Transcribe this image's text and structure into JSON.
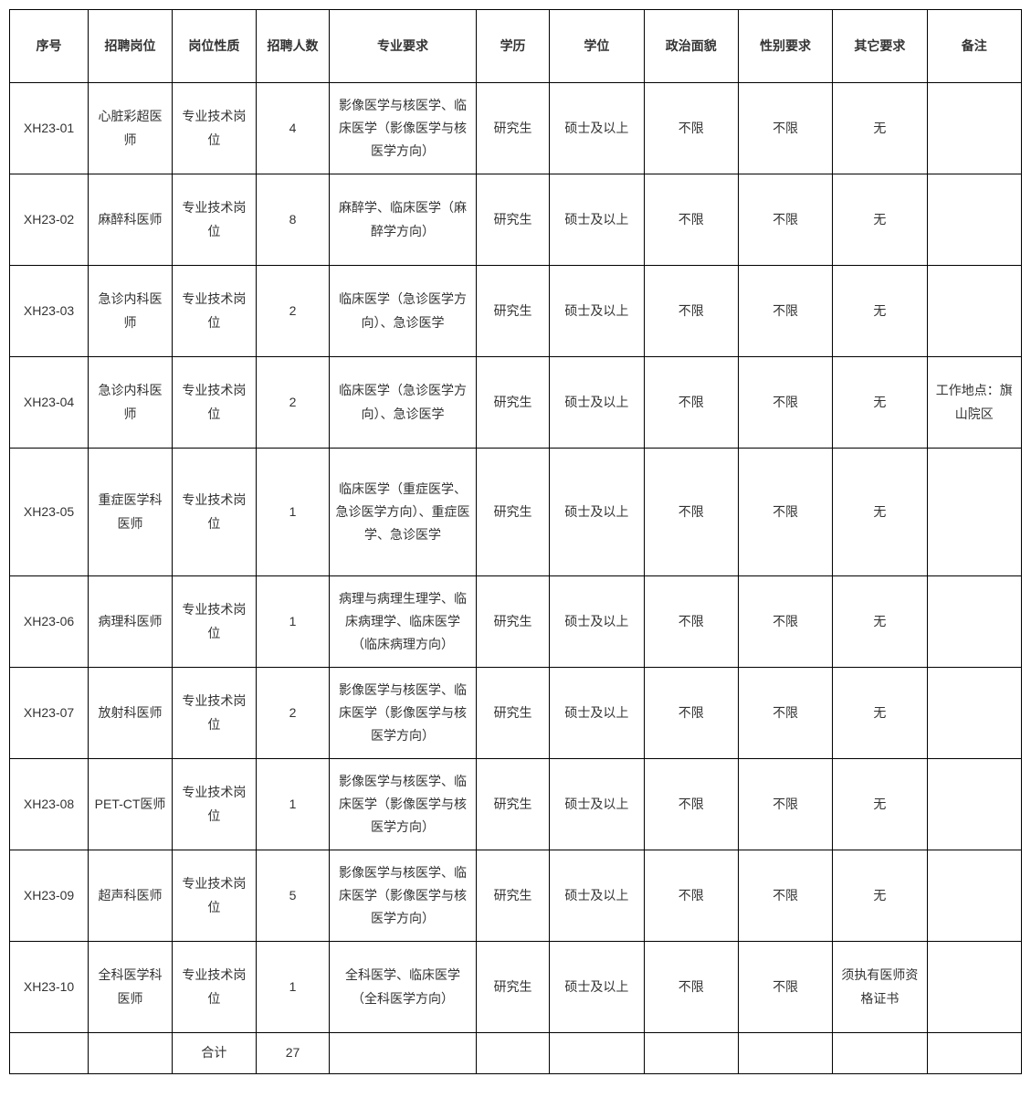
{
  "headers": {
    "id": "序号",
    "position": "招聘岗位",
    "nature": "岗位性质",
    "count": "招聘人数",
    "major": "专业要求",
    "education": "学历",
    "degree": "学位",
    "politics": "政治面貌",
    "gender": "性别要求",
    "other": "其它要求",
    "note": "备注"
  },
  "rows": [
    {
      "id": "XH23-01",
      "position": "心脏彩超医师",
      "nature": "专业技术岗位",
      "count": "4",
      "major": "影像医学与核医学、临床医学（影像医学与核医学方向）",
      "education": "研究生",
      "degree": "硕士及以上",
      "politics": "不限",
      "gender": "不限",
      "other": "无",
      "note": ""
    },
    {
      "id": "XH23-02",
      "position": "麻醉科医师",
      "nature": "专业技术岗位",
      "count": "8",
      "major": "麻醉学、临床医学（麻醉学方向）",
      "education": "研究生",
      "degree": "硕士及以上",
      "politics": "不限",
      "gender": "不限",
      "other": "无",
      "note": ""
    },
    {
      "id": "XH23-03",
      "position": "急诊内科医师",
      "nature": "专业技术岗位",
      "count": "2",
      "major": "临床医学（急诊医学方向）、急诊医学",
      "education": "研究生",
      "degree": "硕士及以上",
      "politics": "不限",
      "gender": "不限",
      "other": "无",
      "note": ""
    },
    {
      "id": "XH23-04",
      "position": "急诊内科医师",
      "nature": "专业技术岗位",
      "count": "2",
      "major": "临床医学（急诊医学方向）、急诊医学",
      "education": "研究生",
      "degree": "硕士及以上",
      "politics": "不限",
      "gender": "不限",
      "other": "无",
      "note": "工作地点：旗山院区"
    },
    {
      "id": "XH23-05",
      "position": "重症医学科医师",
      "nature": "专业技术岗位",
      "count": "1",
      "major": "临床医学（重症医学、急诊医学方向）、重症医学、急诊医学",
      "education": "研究生",
      "degree": "硕士及以上",
      "politics": "不限",
      "gender": "不限",
      "other": "无",
      "note": ""
    },
    {
      "id": "XH23-06",
      "position": "病理科医师",
      "nature": "专业技术岗位",
      "count": "1",
      "major": "病理与病理生理学、临床病理学、临床医学（临床病理方向）",
      "education": "研究生",
      "degree": "硕士及以上",
      "politics": "不限",
      "gender": "不限",
      "other": "无",
      "note": ""
    },
    {
      "id": "XH23-07",
      "position": "放射科医师",
      "nature": "专业技术岗位",
      "count": "2",
      "major": "影像医学与核医学、临床医学（影像医学与核医学方向）",
      "education": "研究生",
      "degree": "硕士及以上",
      "politics": "不限",
      "gender": "不限",
      "other": "无",
      "note": ""
    },
    {
      "id": "XH23-08",
      "position": "PET-CT医师",
      "nature": "专业技术岗位",
      "count": "1",
      "major": "影像医学与核医学、临床医学（影像医学与核医学方向）",
      "education": "研究生",
      "degree": "硕士及以上",
      "politics": "不限",
      "gender": "不限",
      "other": "无",
      "note": ""
    },
    {
      "id": "XH23-09",
      "position": "超声科医师",
      "nature": "专业技术岗位",
      "count": "5",
      "major": "影像医学与核医学、临床医学（影像医学与核医学方向）",
      "education": "研究生",
      "degree": "硕士及以上",
      "politics": "不限",
      "gender": "不限",
      "other": "无",
      "note": ""
    },
    {
      "id": "XH23-10",
      "position": "全科医学科医师",
      "nature": "专业技术岗位",
      "count": "1",
      "major": "全科医学、临床医学（全科医学方向）",
      "education": "研究生",
      "degree": "硕士及以上",
      "politics": "不限",
      "gender": "不限",
      "other": "须执有医师资格证书",
      "note": ""
    }
  ],
  "total": {
    "label": "合计",
    "value": "27"
  },
  "style": {
    "border_color": "#000000",
    "text_color": "#333333",
    "background_color": "#ffffff",
    "font_size": 14,
    "header_font_weight": "bold"
  }
}
